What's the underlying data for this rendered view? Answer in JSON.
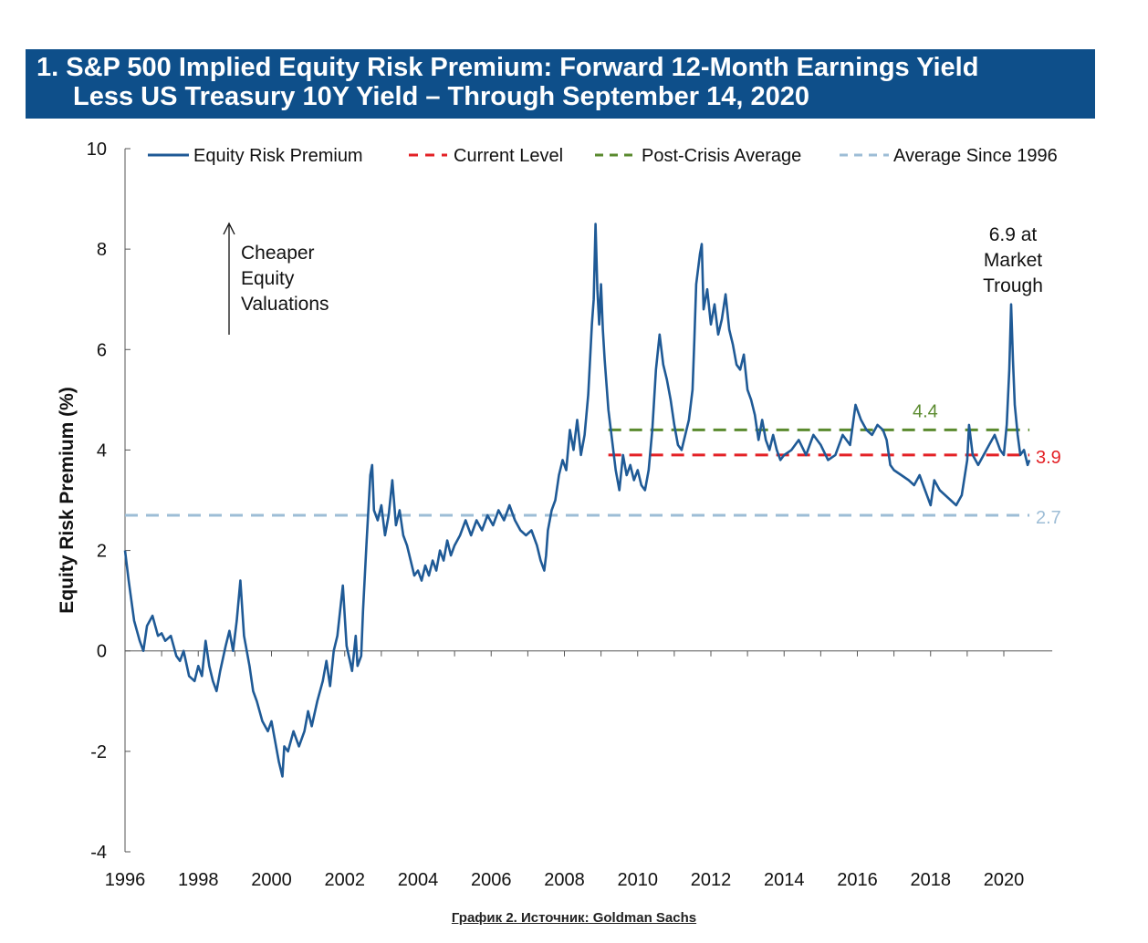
{
  "title": {
    "line1": "1. S&P 500 Implied Equity Risk Premium: Forward 12-Month Earnings Yield",
    "line2": "Less US Treasury 10Y Yield – Through September 14, 2020"
  },
  "caption": "График 2. Источник: Goldman Sachs",
  "chart_data": {
    "type": "line",
    "title": "1. S&P 500 Implied Equity Risk Premium: Forward 12-Month Earnings Yield Less US Treasury 10Y Yield – Through September 14, 2020",
    "xlabel": "",
    "ylabel": "Equity Risk Premium (%)",
    "xlim": [
      1996,
      2020.7
    ],
    "ylim": [
      -4,
      10
    ],
    "x_ticks": [
      "1996",
      "1998",
      "2000",
      "2002",
      "2004",
      "2006",
      "2008",
      "2010",
      "2012",
      "2014",
      "2016",
      "2018",
      "2020"
    ],
    "y_ticks": [
      "-4",
      "-2",
      "0",
      "2",
      "4",
      "6",
      "8",
      "10"
    ],
    "grid": false,
    "legend_position": "top",
    "legend": [
      "Equity Risk Premium",
      "Current Level",
      "Post-Crisis Average",
      "Average Since 1996"
    ],
    "series": [
      {
        "name": "Equity Risk Premium",
        "color": "#1f5a96",
        "points": [
          [
            1996.0,
            2.0
          ],
          [
            1996.1,
            1.4
          ],
          [
            1996.25,
            0.6
          ],
          [
            1996.4,
            0.2
          ],
          [
            1996.5,
            0.0
          ],
          [
            1996.6,
            0.5
          ],
          [
            1996.75,
            0.7
          ],
          [
            1996.9,
            0.3
          ],
          [
            1997.0,
            0.35
          ],
          [
            1997.1,
            0.2
          ],
          [
            1997.25,
            0.3
          ],
          [
            1997.4,
            -0.1
          ],
          [
            1997.5,
            -0.2
          ],
          [
            1997.6,
            0.0
          ],
          [
            1997.75,
            -0.5
          ],
          [
            1997.9,
            -0.6
          ],
          [
            1998.0,
            -0.3
          ],
          [
            1998.1,
            -0.5
          ],
          [
            1998.2,
            0.2
          ],
          [
            1998.3,
            -0.3
          ],
          [
            1998.4,
            -0.6
          ],
          [
            1998.5,
            -0.8
          ],
          [
            1998.6,
            -0.4
          ],
          [
            1998.75,
            0.1
          ],
          [
            1998.85,
            0.4
          ],
          [
            1998.95,
            0.0
          ],
          [
            1999.05,
            0.6
          ],
          [
            1999.15,
            1.4
          ],
          [
            1999.25,
            0.3
          ],
          [
            1999.4,
            -0.3
          ],
          [
            1999.5,
            -0.8
          ],
          [
            1999.6,
            -1.0
          ],
          [
            1999.75,
            -1.4
          ],
          [
            1999.9,
            -1.6
          ],
          [
            2000.0,
            -1.4
          ],
          [
            2000.1,
            -1.8
          ],
          [
            2000.2,
            -2.2
          ],
          [
            2000.3,
            -2.5
          ],
          [
            2000.35,
            -1.9
          ],
          [
            2000.45,
            -2.0
          ],
          [
            2000.6,
            -1.6
          ],
          [
            2000.75,
            -1.9
          ],
          [
            2000.9,
            -1.6
          ],
          [
            2001.0,
            -1.2
          ],
          [
            2001.1,
            -1.5
          ],
          [
            2001.25,
            -1.0
          ],
          [
            2001.4,
            -0.6
          ],
          [
            2001.5,
            -0.2
          ],
          [
            2001.6,
            -0.7
          ],
          [
            2001.7,
            0.0
          ],
          [
            2001.8,
            0.3
          ],
          [
            2001.95,
            1.3
          ],
          [
            2002.05,
            0.1
          ],
          [
            2002.2,
            -0.4
          ],
          [
            2002.3,
            0.3
          ],
          [
            2002.35,
            -0.3
          ],
          [
            2002.45,
            -0.1
          ],
          [
            2002.5,
            0.8
          ],
          [
            2002.6,
            2.2
          ],
          [
            2002.7,
            3.5
          ],
          [
            2002.75,
            3.7
          ],
          [
            2002.8,
            2.8
          ],
          [
            2002.9,
            2.6
          ],
          [
            2003.0,
            2.9
          ],
          [
            2003.1,
            2.3
          ],
          [
            2003.2,
            2.7
          ],
          [
            2003.3,
            3.4
          ],
          [
            2003.4,
            2.5
          ],
          [
            2003.5,
            2.8
          ],
          [
            2003.6,
            2.3
          ],
          [
            2003.7,
            2.1
          ],
          [
            2003.8,
            1.8
          ],
          [
            2003.9,
            1.5
          ],
          [
            2004.0,
            1.6
          ],
          [
            2004.1,
            1.4
          ],
          [
            2004.2,
            1.7
          ],
          [
            2004.3,
            1.5
          ],
          [
            2004.4,
            1.8
          ],
          [
            2004.5,
            1.6
          ],
          [
            2004.6,
            2.0
          ],
          [
            2004.7,
            1.8
          ],
          [
            2004.8,
            2.2
          ],
          [
            2004.9,
            1.9
          ],
          [
            2005.0,
            2.1
          ],
          [
            2005.15,
            2.3
          ],
          [
            2005.3,
            2.6
          ],
          [
            2005.45,
            2.3
          ],
          [
            2005.6,
            2.6
          ],
          [
            2005.75,
            2.4
          ],
          [
            2005.9,
            2.7
          ],
          [
            2006.05,
            2.5
          ],
          [
            2006.2,
            2.8
          ],
          [
            2006.35,
            2.6
          ],
          [
            2006.5,
            2.9
          ],
          [
            2006.65,
            2.6
          ],
          [
            2006.8,
            2.4
          ],
          [
            2006.95,
            2.3
          ],
          [
            2007.1,
            2.4
          ],
          [
            2007.25,
            2.1
          ],
          [
            2007.35,
            1.8
          ],
          [
            2007.45,
            1.6
          ],
          [
            2007.5,
            1.9
          ],
          [
            2007.55,
            2.4
          ],
          [
            2007.65,
            2.8
          ],
          [
            2007.75,
            3.0
          ],
          [
            2007.85,
            3.5
          ],
          [
            2007.95,
            3.8
          ],
          [
            2008.05,
            3.6
          ],
          [
            2008.15,
            4.4
          ],
          [
            2008.25,
            4.0
          ],
          [
            2008.35,
            4.6
          ],
          [
            2008.45,
            3.9
          ],
          [
            2008.55,
            4.3
          ],
          [
            2008.65,
            5.1
          ],
          [
            2008.75,
            6.5
          ],
          [
            2008.8,
            7.0
          ],
          [
            2008.85,
            8.5
          ],
          [
            2008.9,
            7.2
          ],
          [
            2008.95,
            6.5
          ],
          [
            2009.0,
            7.3
          ],
          [
            2009.05,
            6.4
          ],
          [
            2009.1,
            5.8
          ],
          [
            2009.2,
            4.8
          ],
          [
            2009.3,
            4.2
          ],
          [
            2009.4,
            3.6
          ],
          [
            2009.5,
            3.2
          ],
          [
            2009.6,
            3.9
          ],
          [
            2009.7,
            3.5
          ],
          [
            2009.8,
            3.7
          ],
          [
            2009.9,
            3.4
          ],
          [
            2010.0,
            3.6
          ],
          [
            2010.1,
            3.3
          ],
          [
            2010.2,
            3.2
          ],
          [
            2010.3,
            3.6
          ],
          [
            2010.4,
            4.4
          ],
          [
            2010.5,
            5.6
          ],
          [
            2010.6,
            6.3
          ],
          [
            2010.7,
            5.7
          ],
          [
            2010.8,
            5.4
          ],
          [
            2010.9,
            5.0
          ],
          [
            2011.0,
            4.5
          ],
          [
            2011.1,
            4.1
          ],
          [
            2011.2,
            4.0
          ],
          [
            2011.3,
            4.3
          ],
          [
            2011.4,
            4.6
          ],
          [
            2011.5,
            5.2
          ],
          [
            2011.55,
            6.2
          ],
          [
            2011.6,
            7.3
          ],
          [
            2011.7,
            7.9
          ],
          [
            2011.75,
            8.1
          ],
          [
            2011.8,
            6.8
          ],
          [
            2011.9,
            7.2
          ],
          [
            2012.0,
            6.5
          ],
          [
            2012.1,
            6.9
          ],
          [
            2012.2,
            6.3
          ],
          [
            2012.3,
            6.6
          ],
          [
            2012.4,
            7.1
          ],
          [
            2012.5,
            6.4
          ],
          [
            2012.6,
            6.1
          ],
          [
            2012.7,
            5.7
          ],
          [
            2012.8,
            5.6
          ],
          [
            2012.9,
            5.9
          ],
          [
            2013.0,
            5.2
          ],
          [
            2013.1,
            5.0
          ],
          [
            2013.2,
            4.7
          ],
          [
            2013.3,
            4.2
          ],
          [
            2013.4,
            4.6
          ],
          [
            2013.5,
            4.2
          ],
          [
            2013.6,
            4.0
          ],
          [
            2013.7,
            4.3
          ],
          [
            2013.8,
            4.0
          ],
          [
            2013.9,
            3.8
          ],
          [
            2014.0,
            3.9
          ],
          [
            2014.2,
            4.0
          ],
          [
            2014.4,
            4.2
          ],
          [
            2014.6,
            3.9
          ],
          [
            2014.8,
            4.3
          ],
          [
            2015.0,
            4.1
          ],
          [
            2015.2,
            3.8
          ],
          [
            2015.4,
            3.9
          ],
          [
            2015.6,
            4.3
          ],
          [
            2015.8,
            4.1
          ],
          [
            2015.95,
            4.9
          ],
          [
            2016.1,
            4.6
          ],
          [
            2016.25,
            4.4
          ],
          [
            2016.4,
            4.3
          ],
          [
            2016.55,
            4.5
          ],
          [
            2016.7,
            4.4
          ],
          [
            2016.8,
            4.2
          ],
          [
            2016.9,
            3.7
          ],
          [
            2017.0,
            3.6
          ],
          [
            2017.2,
            3.5
          ],
          [
            2017.4,
            3.4
          ],
          [
            2017.55,
            3.3
          ],
          [
            2017.7,
            3.5
          ],
          [
            2017.85,
            3.2
          ],
          [
            2018.0,
            2.9
          ],
          [
            2018.1,
            3.4
          ],
          [
            2018.25,
            3.2
          ],
          [
            2018.4,
            3.1
          ],
          [
            2018.55,
            3.0
          ],
          [
            2018.7,
            2.9
          ],
          [
            2018.85,
            3.1
          ],
          [
            2019.0,
            3.8
          ],
          [
            2019.05,
            4.5
          ],
          [
            2019.15,
            3.9
          ],
          [
            2019.3,
            3.7
          ],
          [
            2019.45,
            3.9
          ],
          [
            2019.6,
            4.1
          ],
          [
            2019.75,
            4.3
          ],
          [
            2019.9,
            4.0
          ],
          [
            2020.0,
            3.9
          ],
          [
            2020.08,
            4.5
          ],
          [
            2020.15,
            5.6
          ],
          [
            2020.2,
            6.9
          ],
          [
            2020.25,
            5.8
          ],
          [
            2020.3,
            4.9
          ],
          [
            2020.38,
            4.3
          ],
          [
            2020.45,
            3.9
          ],
          [
            2020.55,
            4.0
          ],
          [
            2020.65,
            3.7
          ],
          [
            2020.7,
            3.8
          ]
        ]
      },
      {
        "name": "Current Level",
        "color": "#e32126",
        "value": 3.9,
        "x_range": [
          2009.2,
          2020.7
        ],
        "label": "3.9"
      },
      {
        "name": "Post-Crisis Average",
        "color": "#5a8a2e",
        "value": 4.4,
        "x_range": [
          2009.2,
          2020.7
        ],
        "label": "4.4"
      },
      {
        "name": "Average Since 1996",
        "color": "#9dbdd6",
        "value": 2.7,
        "x_range": [
          1996.0,
          2020.7
        ],
        "label": "2.7"
      }
    ],
    "annotations": {
      "cheaper": [
        "Cheaper",
        "Equity",
        "Valuations"
      ],
      "trough": [
        "6.9 at",
        "Market",
        "Trough"
      ]
    }
  }
}
